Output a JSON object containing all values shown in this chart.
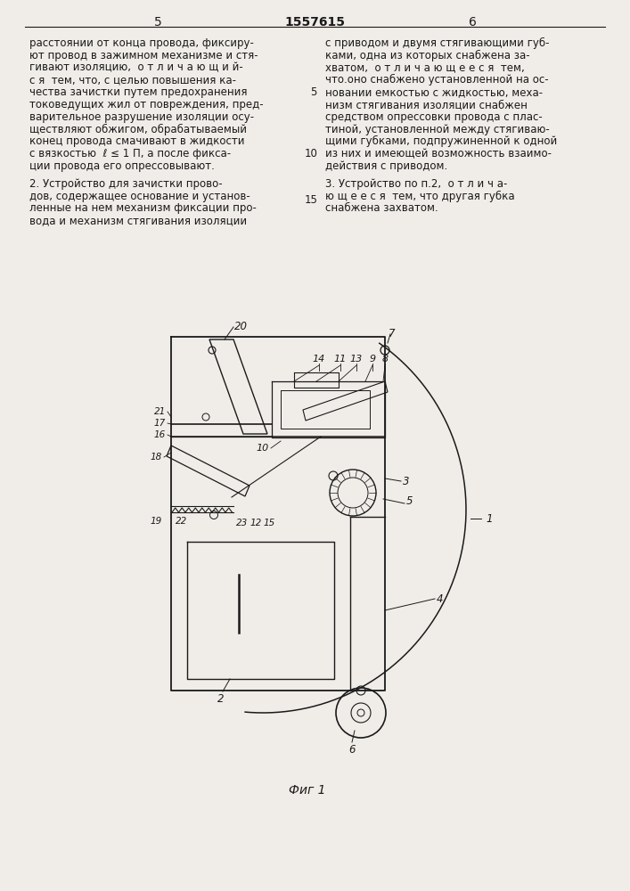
{
  "page_number_left": "5",
  "page_number_center": "1557615",
  "page_number_right": "6",
  "col_left_text": [
    "расстоянии от конца провода, фиксиру-",
    "ют провод в зажимном механизме и стя-",
    "гивают изоляцию,  о т л и ч а ю щ и й-",
    "с я  тем, что, с целью повышения ка-",
    "чества зачистки путем предохранения",
    "токоведущих жил от повреждения, пред-",
    "варительное разрушение изоляции осу-",
    "ществляют обжигом, обрабатываемый",
    "конец провода смачивают в жидкости",
    "с вязкостью  ℓ ≤ 1 П, а после фикса-",
    "ции провода его опрессовывают."
  ],
  "col_right_text_top": [
    "с приводом и двумя стягивающими губ-",
    "ками, одна из которых снабжена за-",
    "хватом,  о т л и ч а ю щ е е с я  тем,",
    "что.оно снабжено установленной на ос-",
    "новании емкостью с жидкостью, меха-",
    "низм стягивания изоляции снабжен",
    "средством опрессовки провода с плас-",
    "тиной, установленной между стягиваю-",
    "щими губками, подпружиненной к одной",
    "из них и имеющей возможность взаимо-",
    "действия с приводом."
  ],
  "col_left_text2": [
    "2. Устройство для зачистки прово-",
    "дов, содержащее основание и установ-",
    "ленные на нем механизм фиксации про-",
    "вода и механизм стягивания изоляции"
  ],
  "col_right_text2": [
    "3. Устройство по п.2,  о т л и ч а-",
    "ю щ е е с я  тем, что другая губка",
    "снабжена захватом."
  ],
  "figure_caption": "Фиг 1",
  "background_color": "#f0ede8",
  "line_color": "#1a1a1a",
  "text_color": "#1a1a1a"
}
